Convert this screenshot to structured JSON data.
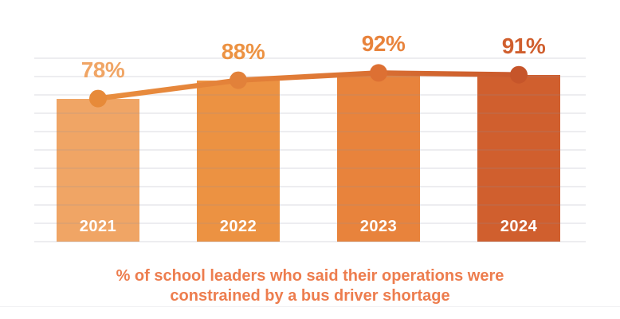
{
  "chart_data": {
    "type": "bar",
    "categories": [
      "2021",
      "2022",
      "2023",
      "2024"
    ],
    "values": [
      78,
      88,
      92,
      91
    ],
    "value_labels": [
      "78%",
      "88%",
      "92%",
      "91%"
    ],
    "series": [
      {
        "name": "% constrained by bus driver shortage",
        "values": [
          78,
          88,
          92,
          91
        ]
      }
    ],
    "title": "",
    "xlabel": "",
    "ylabel": "",
    "ylim": [
      0,
      100
    ],
    "grid": true,
    "gridline_step_pct": 10,
    "legend": false,
    "caption_line1": "% of school leaders who said their operations were",
    "caption_line2": "constrained by a bus driver shortage",
    "colors": {
      "bars": [
        "#F0A565",
        "#EC9242",
        "#E8833C",
        "#D05F2E"
      ],
      "value_labels": [
        "#F0A565",
        "#EC9242",
        "#E8833C",
        "#D05F2E"
      ],
      "dots": [
        "#E78A39",
        "#E2813A",
        "#DD7033",
        "#C6552A"
      ],
      "line_gradient": [
        "#E98E3E",
        "#E07A36",
        "#C9582B"
      ],
      "gridline": "rgba(140,140,160,0.16)",
      "year_label": "#FFFFFF",
      "caption": "#ED7D4E"
    }
  }
}
